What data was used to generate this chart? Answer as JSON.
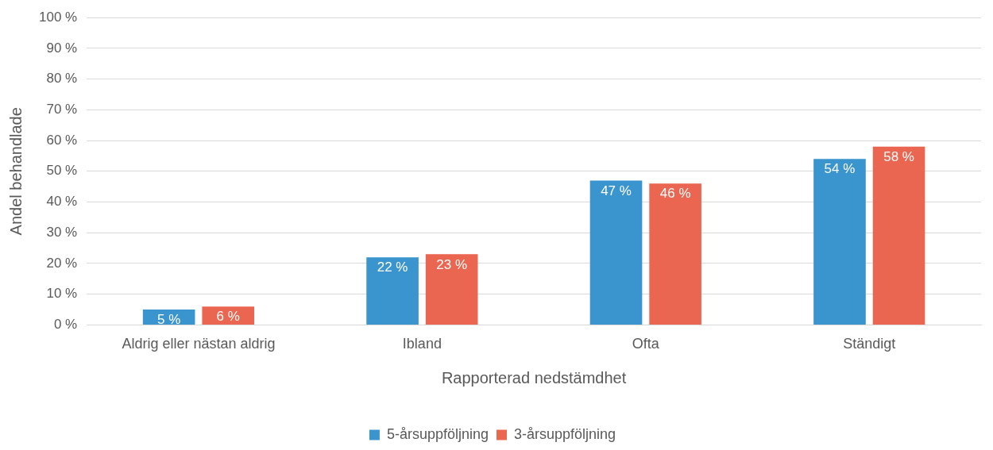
{
  "chart_data": {
    "type": "bar",
    "xlabel": "Rapporterad nedstämdhet",
    "ylabel": "Andel behandlade",
    "categories": [
      "Aldrig eller nästan aldrig",
      "Ibland",
      "Ofta",
      "Ständigt"
    ],
    "series": [
      {
        "name": "5-årsuppföljning",
        "color": "#3a94cd",
        "values": [
          5,
          22,
          47,
          54
        ],
        "value_labels": [
          "5 %",
          "22 %",
          "47 %",
          "54 %"
        ]
      },
      {
        "name": "3-årsuppföljning",
        "color": "#eb6650",
        "values": [
          6,
          23,
          46,
          58
        ],
        "value_labels": [
          "6 %",
          "23 %",
          "46 %",
          "58 %"
        ]
      }
    ],
    "ylim": [
      0,
      100
    ],
    "yticks": [
      {
        "value": 0,
        "label": "0 %"
      },
      {
        "value": 10,
        "label": "10 %"
      },
      {
        "value": 20,
        "label": "20 %"
      },
      {
        "value": 30,
        "label": "30 %"
      },
      {
        "value": 40,
        "label": "40 %"
      },
      {
        "value": 50,
        "label": "50 %"
      },
      {
        "value": 60,
        "label": "60 %"
      },
      {
        "value": 70,
        "label": "70 %"
      },
      {
        "value": 80,
        "label": "80 %"
      },
      {
        "value": 90,
        "label": "90 %"
      },
      {
        "value": 100,
        "label": "100 %"
      }
    ],
    "grid": "y",
    "legend": "bottom"
  }
}
